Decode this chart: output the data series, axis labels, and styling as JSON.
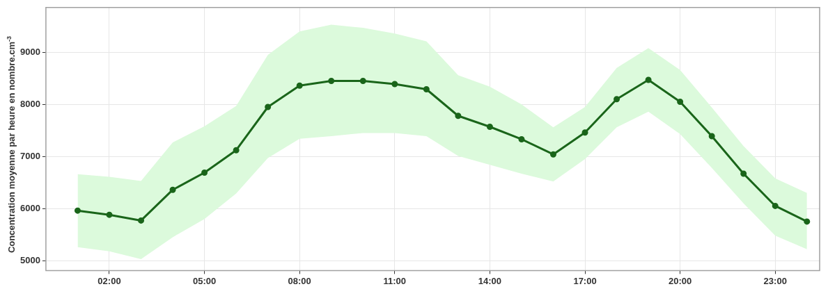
{
  "chart_data": {
    "type": "line",
    "ylabel": "Concentration moyenne par heure en nombre.cm$^{-3}$",
    "x": [
      1,
      2,
      3,
      4,
      5,
      6,
      7,
      8,
      9,
      10,
      11,
      12,
      13,
      14,
      15,
      16,
      17,
      18,
      19,
      20,
      21,
      22,
      23,
      24
    ],
    "series": [
      {
        "color": "#1a651a",
        "values": [
          5960,
          5880,
          5770,
          6360,
          6690,
          7120,
          7950,
          8360,
          8450,
          8450,
          8390,
          8290,
          7780,
          7570,
          7330,
          7040,
          7460,
          8100,
          8470,
          8050,
          7390,
          6670,
          6050,
          5750
        ],
        "lower": [
          5260,
          5180,
          5030,
          5450,
          5800,
          6290,
          6970,
          7340,
          7390,
          7450,
          7450,
          7390,
          7010,
          6840,
          6670,
          6520,
          6950,
          7560,
          7860,
          7430,
          6780,
          6100,
          5480,
          5220
        ],
        "upper": [
          6660,
          6610,
          6530,
          7270,
          7580,
          7970,
          8950,
          9400,
          9530,
          9470,
          9360,
          9210,
          8560,
          8340,
          8000,
          7560,
          7950,
          8700,
          9080,
          8660,
          7940,
          7200,
          6580,
          6300
        ]
      }
    ],
    "xlim": [
      0,
      24.4
    ],
    "xticks": [
      {
        "value": 2,
        "label": "02:00"
      },
      {
        "value": 5,
        "label": "05:00"
      },
      {
        "value": 8,
        "label": "08:00"
      },
      {
        "value": 11,
        "label": "11:00"
      },
      {
        "value": 14,
        "label": "14:00"
      },
      {
        "value": 17,
        "label": "17:00"
      },
      {
        "value": 20,
        "label": "20:00"
      },
      {
        "value": 23,
        "label": "23:00"
      }
    ],
    "ylim": [
      4810,
      9860
    ],
    "yticks": [
      5000,
      6000,
      7000,
      8000,
      9000
    ],
    "grid": true,
    "marker": "circle",
    "line_style": "solid"
  }
}
